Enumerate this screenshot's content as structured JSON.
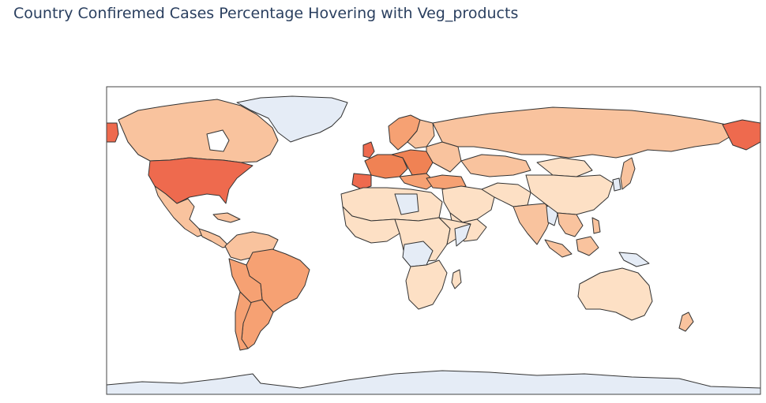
{
  "title": "Country Confiremed Cases Percentage Hovering with Veg_products",
  "colors": {
    "ocean": "#ffffff",
    "frame": "#444444",
    "no_data": "#e5ecf6",
    "level_1": "#fde0c5",
    "level_2": "#f9c39e",
    "level_3": "#f6a173",
    "level_4": "#f08254",
    "level_5": "#ee6a4e"
  },
  "map": {
    "projection": "equirectangular",
    "colorscale": "sequential-oranges",
    "show_frame": true
  }
}
